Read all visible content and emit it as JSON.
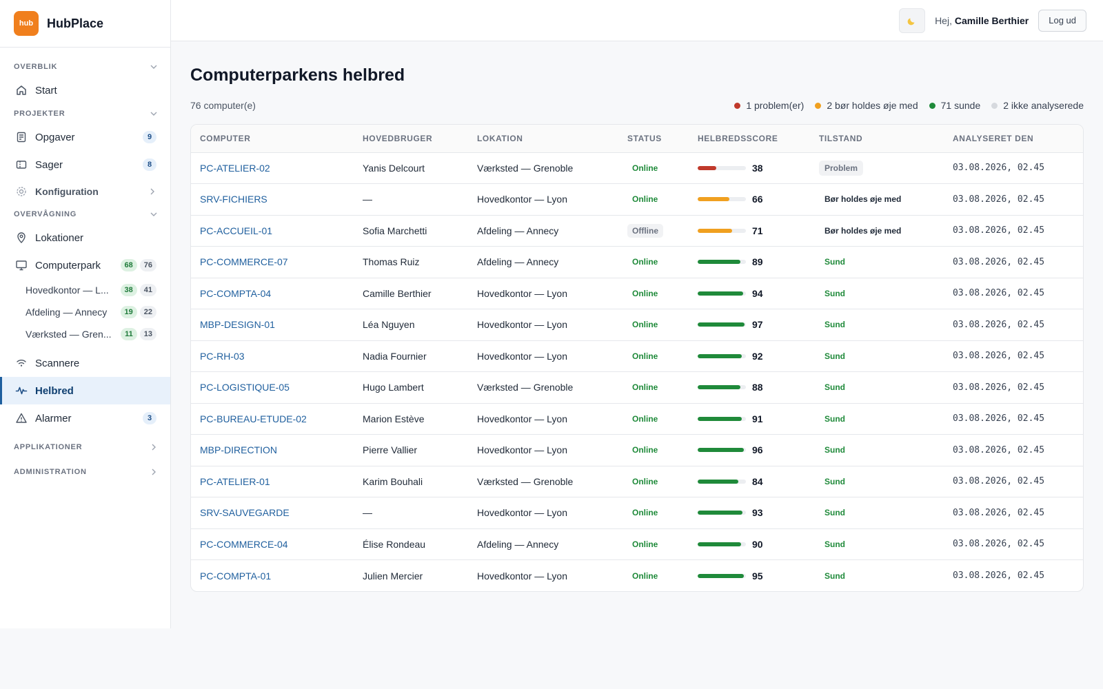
{
  "brand": {
    "logo_text": "hub",
    "name": "HubPlace"
  },
  "sidebar": {
    "sections": {
      "overview": "OVERBLIK",
      "projects": "PROJEKTER",
      "monitoring": "OVERVÅGNING",
      "apps": "APPLIKATIONER",
      "admin": "ADMINISTRATION"
    },
    "items": {
      "start": {
        "label": "Start"
      },
      "tasks": {
        "label": "Opgaver",
        "badge": "9"
      },
      "cases": {
        "label": "Sager",
        "badge": "8"
      },
      "config": {
        "label": "Konfiguration"
      },
      "locations": {
        "label": "Lokationer"
      },
      "fleet": {
        "label": "Computerpark",
        "badge_online": "68",
        "badge_total": "76"
      },
      "fleet_sub": [
        {
          "label": "Hovedkontor — L...",
          "online": "38",
          "total": "41"
        },
        {
          "label": "Afdeling — Annecy",
          "online": "19",
          "total": "22"
        },
        {
          "label": "Værksted — Gren...",
          "online": "11",
          "total": "13"
        }
      ],
      "scanners": {
        "label": "Scannere"
      },
      "health": {
        "label": "Helbred"
      },
      "alarms": {
        "label": "Alarmer",
        "badge": "3"
      }
    }
  },
  "topbar": {
    "theme_icon": "moon-icon",
    "greeting_prefix": "Hej,",
    "user_name": "Camille Berthier",
    "logout_label": "Log ud"
  },
  "main": {
    "title": "Computerparkens helbred",
    "count": "76 computer(e)",
    "legend": [
      {
        "label": "1 problem(er)",
        "color": "#c0392b"
      },
      {
        "label": "2 bør holdes øje med",
        "color": "#f0a020"
      },
      {
        "label": "71 sunde",
        "color": "#1f8a3a"
      },
      {
        "label": "2 ikke analyserede",
        "color": "#d6d9de"
      }
    ],
    "columns": [
      "COMPUTER",
      "HOVEDBRUGER",
      "LOKATION",
      "STATUS",
      "HELBREDSSCORE",
      "TILSTAND",
      "ANALYSERET DEN"
    ],
    "rows": [
      {
        "computer": "PC-ATELIER-02",
        "user": "Yanis Delcourt",
        "location": "Værksted — Grenoble",
        "status": "Online",
        "score": 38,
        "condition": "Problem",
        "analyzed": "03.08.2026, 02.45"
      },
      {
        "computer": "SRV-FICHIERS",
        "user": "—",
        "location": "Hovedkontor — Lyon",
        "status": "Online",
        "score": 66,
        "condition": "Bør holdes øje med",
        "analyzed": "03.08.2026, 02.45"
      },
      {
        "computer": "PC-ACCUEIL-01",
        "user": "Sofia Marchetti",
        "location": "Afdeling — Annecy",
        "status": "Offline",
        "score": 71,
        "condition": "Bør holdes øje med",
        "analyzed": "03.08.2026, 02.45"
      },
      {
        "computer": "PC-COMMERCE-07",
        "user": "Thomas Ruiz",
        "location": "Afdeling — Annecy",
        "status": "Online",
        "score": 89,
        "condition": "Sund",
        "analyzed": "03.08.2026, 02.45"
      },
      {
        "computer": "PC-COMPTA-04",
        "user": "Camille Berthier",
        "location": "Hovedkontor — Lyon",
        "status": "Online",
        "score": 94,
        "condition": "Sund",
        "analyzed": "03.08.2026, 02.45"
      },
      {
        "computer": "MBP-DESIGN-01",
        "user": "Léa Nguyen",
        "location": "Hovedkontor — Lyon",
        "status": "Online",
        "score": 97,
        "condition": "Sund",
        "analyzed": "03.08.2026, 02.45"
      },
      {
        "computer": "PC-RH-03",
        "user": "Nadia Fournier",
        "location": "Hovedkontor — Lyon",
        "status": "Online",
        "score": 92,
        "condition": "Sund",
        "analyzed": "03.08.2026, 02.45"
      },
      {
        "computer": "PC-LOGISTIQUE-05",
        "user": "Hugo Lambert",
        "location": "Værksted — Grenoble",
        "status": "Online",
        "score": 88,
        "condition": "Sund",
        "analyzed": "03.08.2026, 02.45"
      },
      {
        "computer": "PC-BUREAU-ETUDE-02",
        "user": "Marion Estève",
        "location": "Hovedkontor — Lyon",
        "status": "Online",
        "score": 91,
        "condition": "Sund",
        "analyzed": "03.08.2026, 02.45"
      },
      {
        "computer": "MBP-DIRECTION",
        "user": "Pierre Vallier",
        "location": "Hovedkontor — Lyon",
        "status": "Online",
        "score": 96,
        "condition": "Sund",
        "analyzed": "03.08.2026, 02.45"
      },
      {
        "computer": "PC-ATELIER-01",
        "user": "Karim Bouhali",
        "location": "Værksted — Grenoble",
        "status": "Online",
        "score": 84,
        "condition": "Sund",
        "analyzed": "03.08.2026, 02.45"
      },
      {
        "computer": "SRV-SAUVEGARDE",
        "user": "—",
        "location": "Hovedkontor — Lyon",
        "status": "Online",
        "score": 93,
        "condition": "Sund",
        "analyzed": "03.08.2026, 02.45"
      },
      {
        "computer": "PC-COMMERCE-04",
        "user": "Élise Rondeau",
        "location": "Afdeling — Annecy",
        "status": "Online",
        "score": 90,
        "condition": "Sund",
        "analyzed": "03.08.2026, 02.45"
      },
      {
        "computer": "PC-COMPTA-01",
        "user": "Julien Mercier",
        "location": "Hovedkontor — Lyon",
        "status": "Online",
        "score": 95,
        "condition": "Sund",
        "analyzed": "03.08.2026, 02.45"
      }
    ]
  },
  "colors": {
    "accent": "#1f5f9e",
    "brand": "#f07f1d",
    "score_problem": "#c0392b",
    "score_watch": "#f0a020",
    "score_healthy": "#1f8a3a"
  }
}
